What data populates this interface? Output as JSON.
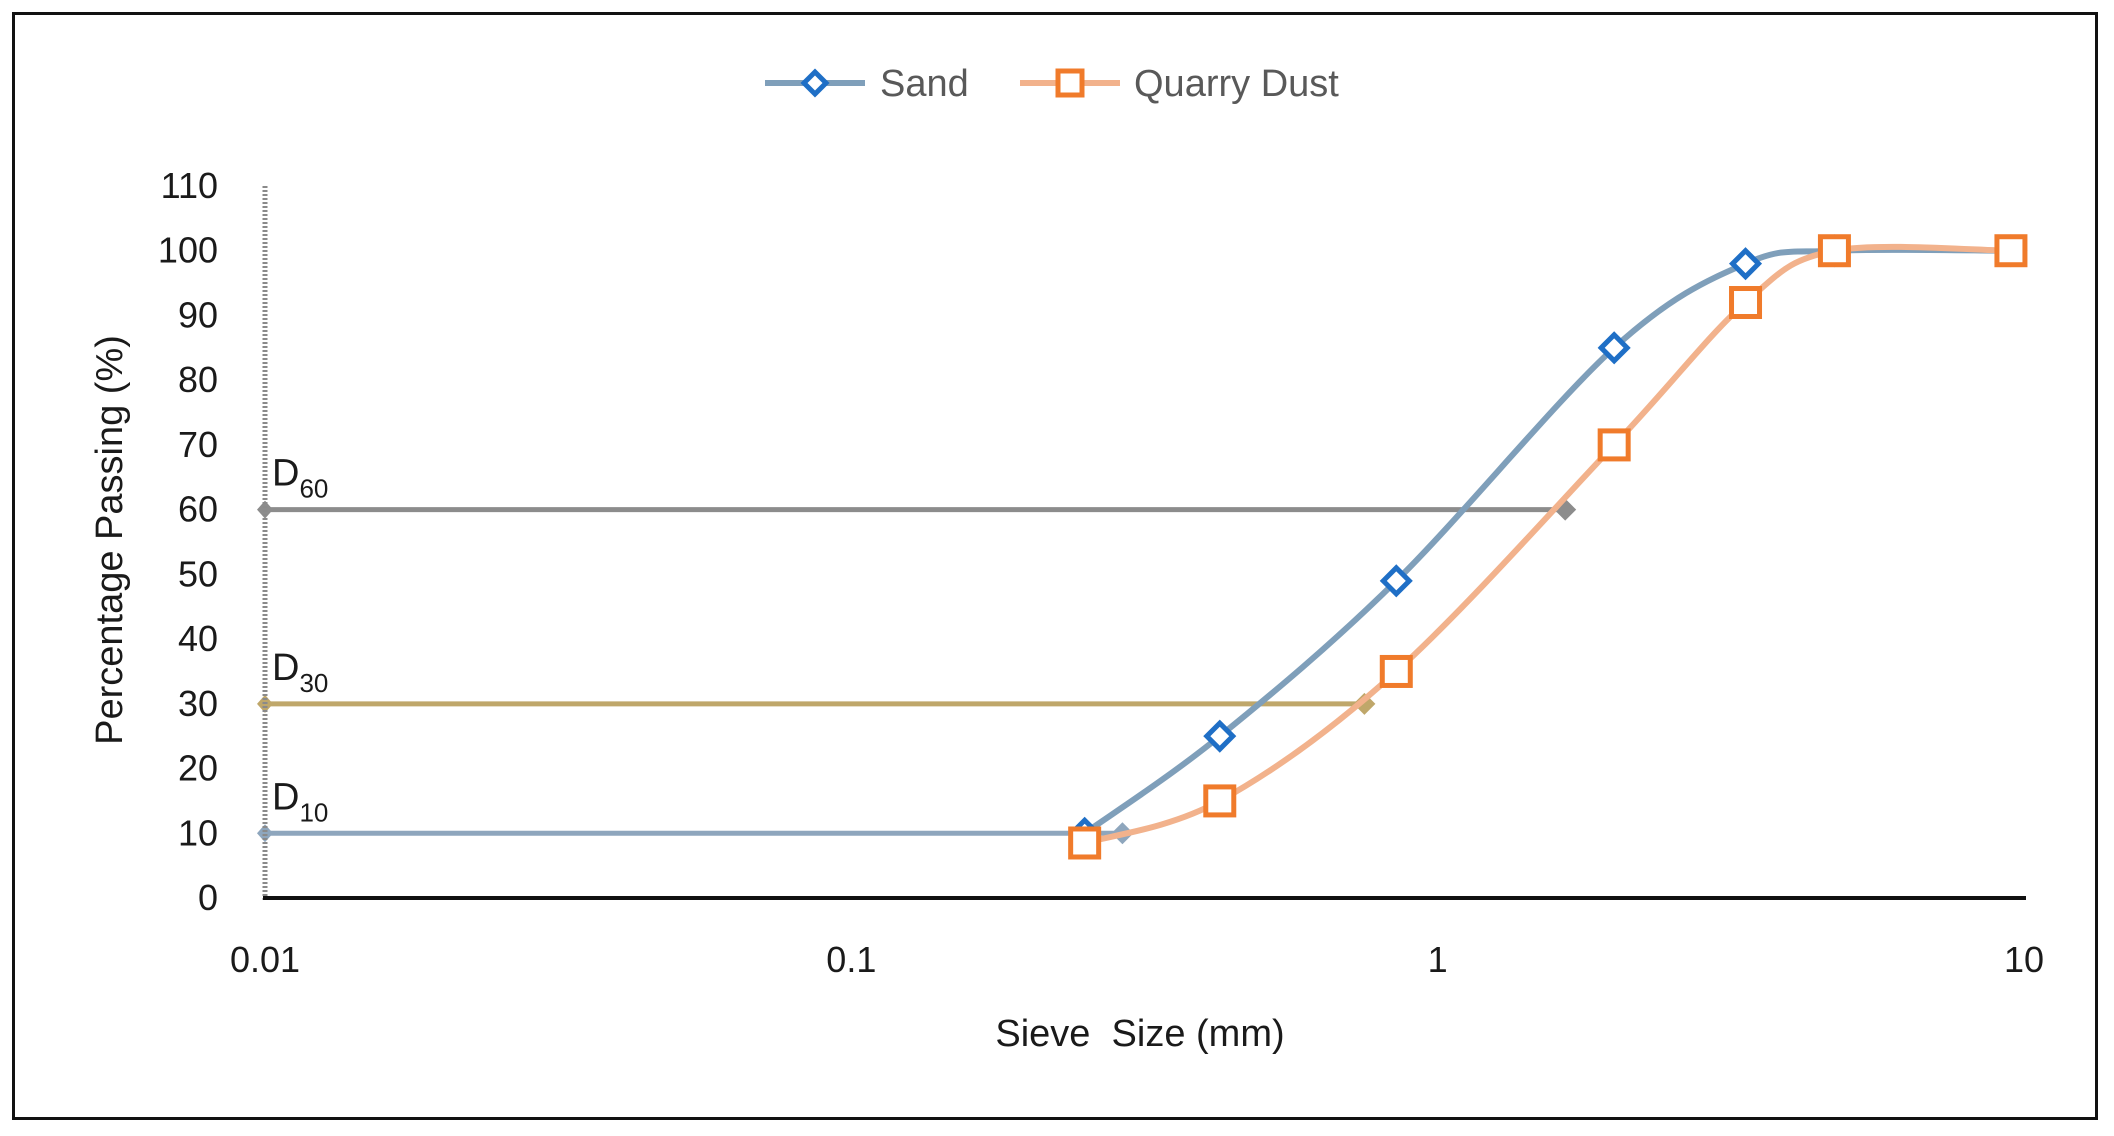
{
  "chart_data": {
    "type": "line",
    "xlabel": "Sieve  Size (mm)",
    "ylabel": "Percentage Passing (%)",
    "x_scale": "log",
    "xlim": [
      0.01,
      10
    ],
    "ylim": [
      0,
      110
    ],
    "x_ticks": [
      "0.01",
      "0.1",
      "1",
      "10"
    ],
    "y_ticks": [
      "0",
      "10",
      "20",
      "30",
      "40",
      "50",
      "60",
      "70",
      "80",
      "90",
      "100",
      "110"
    ],
    "grid": false,
    "legend_position": "top-center",
    "series": [
      {
        "name": "Sand",
        "color": "#7f9fba",
        "marker": "diamond",
        "marker_color": "#1f6fc6",
        "x": [
          0.25,
          0.425,
          0.85,
          2.0,
          3.35,
          4.75,
          9.5
        ],
        "y": [
          10,
          25,
          49,
          85,
          98,
          100,
          100
        ]
      },
      {
        "name": "Quarry Dust",
        "color": "#f2b28c",
        "marker": "square",
        "marker_color": "#f07b2b",
        "x": [
          0.25,
          0.425,
          0.85,
          2.0,
          3.35,
          4.75,
          9.5
        ],
        "y": [
          8.5,
          15,
          35,
          70,
          92,
          100,
          100
        ]
      }
    ],
    "reference_lines": [
      {
        "base": "D",
        "sub": "60",
        "y": 60,
        "x_end": 1.65,
        "color": "#8c8c8c"
      },
      {
        "base": "D",
        "sub": "30",
        "y": 30,
        "x_end": 0.75,
        "color": "#bfa76a"
      },
      {
        "base": "D",
        "sub": "10",
        "y": 10,
        "x_end": 0.29,
        "color": "#8ea6bd"
      }
    ]
  }
}
